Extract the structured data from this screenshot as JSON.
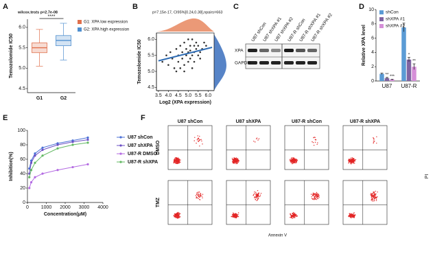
{
  "chart_data": [
    {
      "type": "box",
      "label": "A",
      "title": "wilcox.tests p=2.7e-08",
      "annotation": "****",
      "ylabel": "Temozolomide IC50",
      "categories": [
        "G1",
        "G2"
      ],
      "series": [
        {
          "name": "G1: XPA low expression",
          "color": "#e0704c",
          "whislo": 5.05,
          "q1": 5.38,
          "med": 5.5,
          "q3": 5.62,
          "whishi": 5.95
        },
        {
          "name": "G2: XPA high expression",
          "color": "#4f8fcf",
          "whislo": 5.2,
          "q1": 5.55,
          "med": 5.68,
          "q3": 5.8,
          "whishi": 6.1
        }
      ],
      "ylim": [
        4.4,
        6.2
      ],
      "yticks": [
        4.5,
        {
          "value": 5,
          "label": "5.0"
        },
        5.5,
        {
          "value": 6,
          "label": "6.0"
        }
      ]
    },
    {
      "type": "scatter",
      "label": "B",
      "title": "p=7.15e-17, CI95%[0.24,0.38],npairs=663",
      "xlabel": "Log2 (XPA expression)",
      "ylabel": "Temozolomide IC50",
      "color": "#333333",
      "fit_color": "#2f6db5",
      "x": [
        3.7,
        3.9,
        4.0,
        4.1,
        4.2,
        4.3,
        4.4,
        4.5,
        4.5,
        4.6,
        4.7,
        4.7,
        4.8,
        4.8,
        4.9,
        4.9,
        5.0,
        5.0,
        5.1,
        5.1,
        5.2,
        5.2,
        5.3,
        5.3,
        5.4,
        5.4,
        5.5,
        5.5,
        5.6,
        5.7,
        5.8,
        5.9,
        4.4,
        4.6,
        5.0,
        5.2,
        5.6,
        5.3,
        4.8,
        5.1
      ],
      "y": [
        5.3,
        5.5,
        5.2,
        5.6,
        5.4,
        5.1,
        5.7,
        5.5,
        5.3,
        5.8,
        5.4,
        5.6,
        5.2,
        5.9,
        5.5,
        5.7,
        5.3,
        5.6,
        5.8,
        5.4,
        5.5,
        6.0,
        5.6,
        5.3,
        5.7,
        5.9,
        5.5,
        5.8,
        5.6,
        5.7,
        5.9,
        5.8,
        5.0,
        5.1,
        6.0,
        5.1,
        5.4,
        5.8,
        5.0,
        5.65
      ],
      "fit": {
        "x": [
          3.5,
          6.2
        ],
        "y": [
          5.33,
          5.75
        ]
      },
      "xlim": [
        3.4,
        6.3
      ],
      "xticks": [
        3.5,
        {
          "value": 4,
          "label": "4.0"
        },
        4.5,
        {
          "value": 5,
          "label": "5.0"
        },
        5.5,
        {
          "value": 6,
          "label": "6.0"
        }
      ],
      "ylim": [
        4.4,
        6.2
      ],
      "yticks": [
        4.5,
        {
          "value": 5,
          "label": "5.0"
        },
        5.5,
        {
          "value": 6,
          "label": "6.0"
        }
      ]
    },
    {
      "type": "blot",
      "label": "C",
      "lanes": [
        "U87 shCon",
        "U87 shXPA #1",
        "U87 shXPA #2",
        "U87-R shCon",
        "U87-R shXPA #1",
        "U87-R shXPA #2"
      ],
      "rows": [
        "XPA",
        "GAPDH"
      ]
    },
    {
      "type": "grouped_bar",
      "label": "D",
      "ylabel": "Relative XPA level",
      "categories": [
        "U87",
        "U87-R"
      ],
      "series": [
        {
          "name": "shCon",
          "color": "#5b9bd5",
          "values": [
            1,
            7.5
          ],
          "errors": [
            0.1,
            0.6
          ]
        },
        {
          "name": "shXPA #1",
          "color": "#8064a2",
          "values": [
            0.4,
            3.0
          ],
          "errors": [
            0.1,
            0.3
          ],
          "stars": [
            "**",
            "*"
          ]
        },
        {
          "name": "shXPA #2",
          "color": "#d58fd8",
          "values": [
            0.2,
            2.0
          ],
          "errors": [
            0.05,
            0.4
          ],
          "stars": [
            "***",
            "**"
          ]
        }
      ],
      "ylim": [
        0,
        10
      ],
      "yticks": [
        0,
        2,
        4,
        6,
        8,
        10
      ]
    },
    {
      "type": "line",
      "label": "E",
      "xlabel": "Concentration(μM)",
      "ylabel": "Inhibition(%)",
      "x": [
        100,
        200,
        400,
        800,
        1600,
        2400,
        3200
      ],
      "series": [
        {
          "name": "U87 shCon",
          "color": "#4a6fd6",
          "values": [
            47,
            58,
            68,
            76,
            82,
            86,
            90
          ]
        },
        {
          "name": "U87 shXPA",
          "color": "#6b4fc4",
          "values": [
            40,
            55,
            65,
            73,
            80,
            84,
            87
          ]
        },
        {
          "name": "U87-R DMSO",
          "color": "#b36ae2",
          "values": [
            20,
            28,
            35,
            40,
            45,
            49,
            53
          ]
        },
        {
          "name": "U87-R shXPA",
          "color": "#62b862",
          "values": [
            35,
            45,
            55,
            65,
            75,
            80,
            83
          ]
        }
      ],
      "xlim": [
        0,
        4000
      ],
      "xticks": [
        0,
        1000,
        2000,
        3000,
        4000
      ],
      "ylim": [
        0,
        100
      ],
      "yticks": [
        0,
        20,
        40,
        60,
        80,
        100
      ]
    },
    {
      "type": "flow",
      "label": "F",
      "columns": [
        "U87 shCon",
        "U87 shXPA",
        "U87-R shCon",
        "U87-R shXPA"
      ],
      "rows": [
        "DMSO",
        "TMZ"
      ],
      "xlabel": "Annexin V",
      "ylabel": "PI"
    }
  ]
}
